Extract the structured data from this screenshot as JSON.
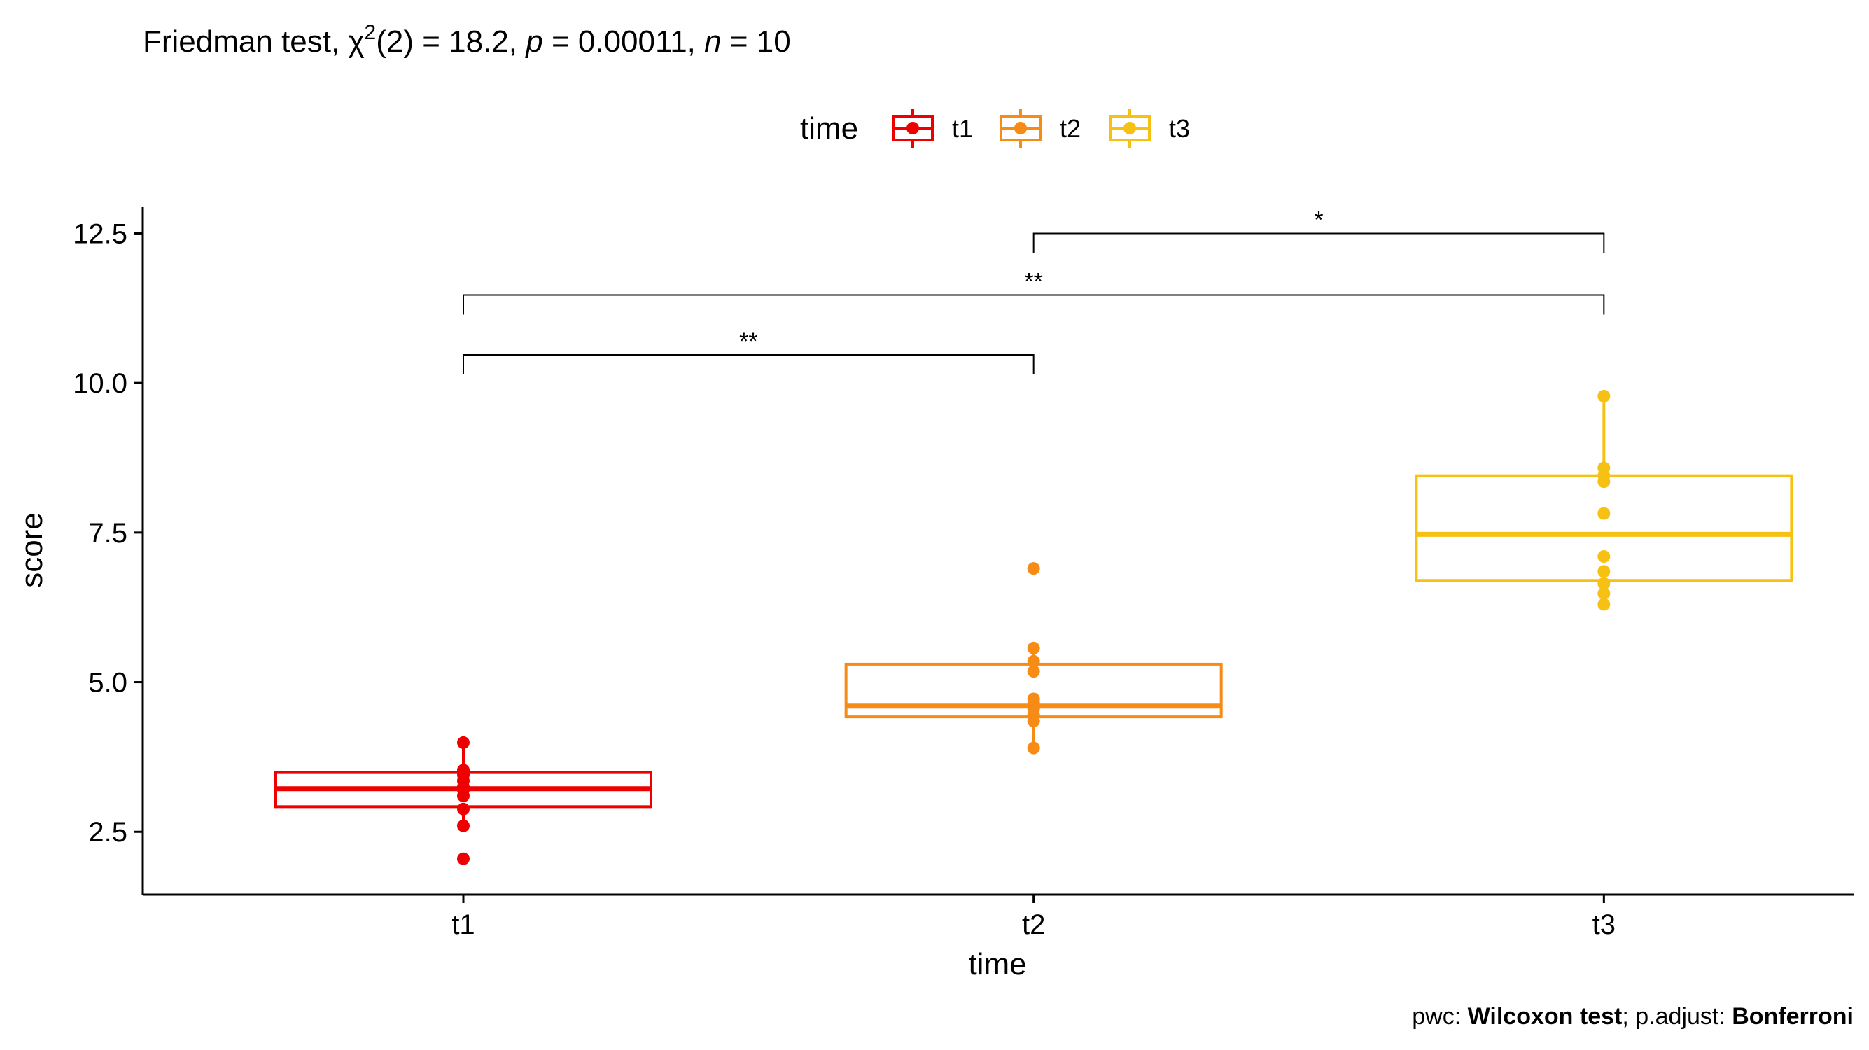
{
  "title": {
    "prefix": "Friedman test, ",
    "chi": "χ",
    "chi_sup": "2",
    "stat": "(2) = 18.2, ",
    "p_label": "p",
    "p_value": " = 0.00011, ",
    "n_label": "n",
    "n_value": " = 10"
  },
  "caption": {
    "pwc_label": "pwc: ",
    "pwc_value": "Wilcoxon test",
    "sep": "; p.adjust: ",
    "adjust_value": "Bonferroni"
  },
  "legend": {
    "title": "time",
    "placement": "top",
    "items": [
      "t1",
      "t2",
      "t3"
    ]
  },
  "colors": {
    "t1": "#EE0000",
    "t2": "#F68B16",
    "t3": "#F7C114",
    "axis": "#000000"
  },
  "chart_data": {
    "type": "box",
    "xlabel": "time",
    "ylabel": "score",
    "categories": [
      "t1",
      "t2",
      "t3"
    ],
    "ylim": [
      1.45,
      12.95
    ],
    "yticks": [
      2.5,
      5.0,
      7.5,
      10.0,
      12.5
    ],
    "ytick_labels": [
      "2.5",
      "5.0",
      "7.5",
      "10.0",
      "12.5"
    ],
    "grid": false,
    "boxes": [
      {
        "name": "t1",
        "q1": 2.92,
        "median": 3.22,
        "q3": 3.49,
        "whisker_low": 2.6,
        "whisker_high": 3.99,
        "points": [
          2.05,
          2.6,
          2.88,
          3.1,
          3.2,
          3.25,
          3.35,
          3.45,
          3.53,
          3.99
        ]
      },
      {
        "name": "t2",
        "q1": 4.42,
        "median": 4.6,
        "q3": 5.3,
        "whisker_low": 3.9,
        "whisker_high": 5.57,
        "points": [
          3.9,
          4.35,
          4.45,
          4.55,
          4.65,
          4.72,
          5.18,
          5.35,
          5.57,
          6.9
        ]
      },
      {
        "name": "t3",
        "q1": 6.7,
        "median": 7.47,
        "q3": 8.45,
        "whisker_low": 6.3,
        "whisker_high": 9.78,
        "points": [
          6.3,
          6.48,
          6.65,
          6.85,
          7.1,
          7.82,
          8.35,
          8.45,
          8.58,
          9.78
        ]
      }
    ],
    "comparisons": [
      {
        "from": "t1",
        "to": "t2",
        "y": 10.47,
        "label": "**"
      },
      {
        "from": "t1",
        "to": "t3",
        "y": 11.47,
        "label": "**"
      },
      {
        "from": "t2",
        "to": "t3",
        "y": 12.5,
        "label": "*"
      }
    ]
  }
}
